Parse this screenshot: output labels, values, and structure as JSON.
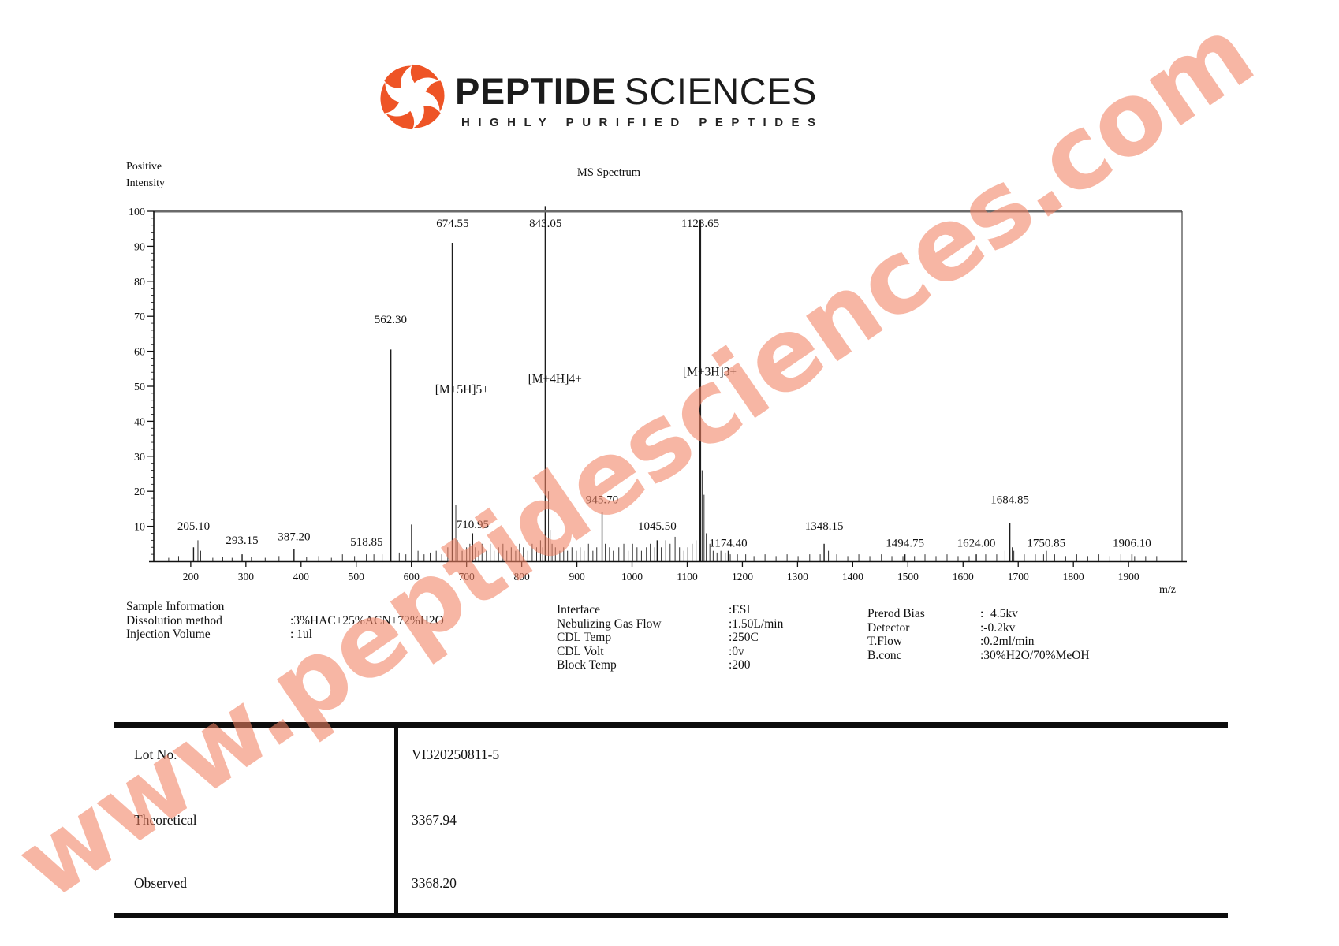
{
  "logo": {
    "brand_bold": "PEPTIDE",
    "brand_rest": "SCIENCES",
    "tagline": "HIGHLY PURIFIED PEPTIDES",
    "icon_color": "#ee5426",
    "text_color": "#1b1b1b"
  },
  "watermark": {
    "text": "www.peptidesciences.com",
    "color": "#f28263"
  },
  "chart_data": {
    "type": "bar",
    "title": "MS Spectrum",
    "ylabel_lines": [
      "Positive",
      "Intensity"
    ],
    "xlabel": "m/z",
    "xlim": [
      133,
      1997
    ],
    "ylim": [
      0,
      100
    ],
    "grid": false,
    "x_ticks": [
      200,
      300,
      400,
      500,
      600,
      700,
      800,
      900,
      1000,
      1100,
      1200,
      1300,
      1400,
      1500,
      1600,
      1700,
      1800,
      1900
    ],
    "y_ticks": [
      10,
      20,
      30,
      40,
      50,
      60,
      70,
      80,
      90,
      100
    ],
    "peaks": [
      {
        "mz": 205.1,
        "intensity": 4,
        "label": "205.10",
        "label_i": 9
      },
      {
        "mz": 293.15,
        "intensity": 2,
        "label": "293.15",
        "label_i": 5
      },
      {
        "mz": 387.2,
        "intensity": 3.5,
        "label": "387.20",
        "label_i": 6
      },
      {
        "mz": 518.85,
        "intensity": 2,
        "label": "518.85",
        "label_i": 4.5
      },
      {
        "mz": 562.3,
        "intensity": 60.5,
        "label": "562.30",
        "label_i": 68
      },
      {
        "mz": 674.55,
        "intensity": 91,
        "label": "674.55",
        "label_i": 95.5,
        "ion": "[M+5H]5+",
        "ion_i": 48
      },
      {
        "mz": 710.95,
        "intensity": 8,
        "label": "710.95",
        "label_i": 9.5
      },
      {
        "mz": 843.05,
        "intensity": 101.5,
        "label": "843.05",
        "label_i": 95.5,
        "ion": "[M+4H]4+",
        "ion_i": 51
      },
      {
        "mz": 945.7,
        "intensity": 14,
        "label": "945.70",
        "label_i": 16.5
      },
      {
        "mz": 1045.5,
        "intensity": 6,
        "label": "1045.50",
        "label_i": 9
      },
      {
        "mz": 1123.65,
        "intensity": 97.5,
        "label": "1123.65",
        "label_i": 95.5,
        "ion": "[M+3H]3+",
        "ion_i": 53
      },
      {
        "mz": 1174.4,
        "intensity": 3,
        "label": "1174.40",
        "label_i": 4.2
      },
      {
        "mz": 1348.15,
        "intensity": 5,
        "label": "1348.15",
        "label_i": 9
      },
      {
        "mz": 1494.75,
        "intensity": 2,
        "label": "1494.75",
        "label_i": 4.2
      },
      {
        "mz": 1624.0,
        "intensity": 2,
        "label": "1624.00",
        "label_i": 4.2
      },
      {
        "mz": 1684.85,
        "intensity": 11,
        "label": "1684.85",
        "label_i": 16.5
      },
      {
        "mz": 1750.85,
        "intensity": 3,
        "label": "1750.85",
        "label_i": 4.2
      },
      {
        "mz": 1906.1,
        "intensity": 2,
        "label": "1906.10",
        "label_i": 4.2
      }
    ],
    "minor_peaks": [
      [
        160,
        1
      ],
      [
        178,
        1.5
      ],
      [
        213,
        6
      ],
      [
        218,
        3
      ],
      [
        240,
        1
      ],
      [
        258,
        1.2
      ],
      [
        275,
        1
      ],
      [
        310,
        1.2
      ],
      [
        335,
        1
      ],
      [
        360,
        1.5
      ],
      [
        410,
        1.2
      ],
      [
        432,
        1.5
      ],
      [
        455,
        1
      ],
      [
        475,
        2
      ],
      [
        497,
        1.5
      ],
      [
        532,
        2
      ],
      [
        547,
        2
      ],
      [
        578,
        2.5
      ],
      [
        590,
        2
      ],
      [
        600,
        10.5
      ],
      [
        612,
        3
      ],
      [
        623,
        2
      ],
      [
        634,
        2.5
      ],
      [
        645,
        3
      ],
      [
        655,
        2
      ],
      [
        666,
        4
      ],
      [
        680.5,
        16
      ],
      [
        683.5,
        6
      ],
      [
        692,
        3
      ],
      [
        700,
        4
      ],
      [
        706,
        5
      ],
      [
        716,
        4
      ],
      [
        722,
        3
      ],
      [
        728,
        5
      ],
      [
        736,
        3
      ],
      [
        743,
        5
      ],
      [
        750,
        3
      ],
      [
        758,
        4
      ],
      [
        766,
        5
      ],
      [
        773,
        3
      ],
      [
        781,
        4
      ],
      [
        789,
        3
      ],
      [
        796,
        5
      ],
      [
        803,
        4
      ],
      [
        811,
        3
      ],
      [
        819,
        5
      ],
      [
        827,
        4
      ],
      [
        834,
        6
      ],
      [
        838,
        4
      ],
      [
        848.5,
        20
      ],
      [
        851.5,
        9
      ],
      [
        855,
        5
      ],
      [
        861,
        4
      ],
      [
        869,
        3
      ],
      [
        876,
        4
      ],
      [
        883,
        3
      ],
      [
        891,
        4
      ],
      [
        899,
        3
      ],
      [
        906,
        4
      ],
      [
        913,
        3
      ],
      [
        921,
        5
      ],
      [
        929,
        3
      ],
      [
        936,
        4
      ],
      [
        951.5,
        5
      ],
      [
        959,
        4
      ],
      [
        966,
        3
      ],
      [
        976,
        4
      ],
      [
        985,
        5
      ],
      [
        993,
        3
      ],
      [
        1001,
        5
      ],
      [
        1009,
        4
      ],
      [
        1017,
        3
      ],
      [
        1026,
        4
      ],
      [
        1033,
        5
      ],
      [
        1041,
        4
      ],
      [
        1053,
        4
      ],
      [
        1061,
        6
      ],
      [
        1069,
        5
      ],
      [
        1078,
        7
      ],
      [
        1086,
        4
      ],
      [
        1094,
        3
      ],
      [
        1101,
        4
      ],
      [
        1109,
        5
      ],
      [
        1116,
        6
      ],
      [
        1127,
        26
      ],
      [
        1130.5,
        19
      ],
      [
        1134.5,
        8
      ],
      [
        1141,
        5
      ],
      [
        1147,
        3
      ],
      [
        1154,
        2.5
      ],
      [
        1161,
        3
      ],
      [
        1169,
        2.5
      ],
      [
        1178,
        2
      ],
      [
        1191,
        2
      ],
      [
        1206,
        2
      ],
      [
        1221,
        1.5
      ],
      [
        1241,
        2
      ],
      [
        1261,
        1.5
      ],
      [
        1281,
        2
      ],
      [
        1301,
        1.5
      ],
      [
        1322,
        2
      ],
      [
        1341,
        2
      ],
      [
        1356,
        3
      ],
      [
        1371,
        2
      ],
      [
        1391,
        1.5
      ],
      [
        1411,
        2
      ],
      [
        1431,
        1.5
      ],
      [
        1452,
        2
      ],
      [
        1471,
        1.5
      ],
      [
        1491,
        1.5
      ],
      [
        1512,
        1.5
      ],
      [
        1531,
        2
      ],
      [
        1551,
        1.5
      ],
      [
        1571,
        2
      ],
      [
        1591,
        1.5
      ],
      [
        1611,
        1.5
      ],
      [
        1641,
        2
      ],
      [
        1661,
        2
      ],
      [
        1676,
        3
      ],
      [
        1689,
        4
      ],
      [
        1692,
        3
      ],
      [
        1711,
        2
      ],
      [
        1731,
        2
      ],
      [
        1746,
        2
      ],
      [
        1766,
        2
      ],
      [
        1786,
        1.5
      ],
      [
        1806,
        2
      ],
      [
        1826,
        1.5
      ],
      [
        1846,
        2
      ],
      [
        1866,
        1.5
      ],
      [
        1886,
        2
      ],
      [
        1911,
        1.5
      ],
      [
        1931,
        1.5
      ],
      [
        1951,
        1.5
      ]
    ]
  },
  "sample_info": {
    "title": "Sample Information",
    "col1": [
      {
        "label": "Dissolution method",
        "value": ":3%HAC+25%ACN+72%H2O"
      },
      {
        "label": "Injection Volume",
        "value": ": 1ul"
      }
    ],
    "col2": [
      {
        "label": "Interface",
        "value": ":ESI"
      },
      {
        "label": "Nebulizing Gas Flow",
        "value": ":1.50L/min"
      },
      {
        "label": "CDL Temp",
        "value": ":250C"
      },
      {
        "label": "CDL Volt",
        "value": ":0v"
      },
      {
        "label": "Block Temp",
        "value": ":200"
      }
    ],
    "col3": [
      {
        "label": "Prerod Bias",
        "value": ":+4.5kv"
      },
      {
        "label": "Detector",
        "value": ":-0.2kv"
      },
      {
        "label": "T.Flow",
        "value": ":0.2ml/min"
      },
      {
        "label": "B.conc",
        "value": ":30%H2O/70%MeOH"
      }
    ]
  },
  "results_table": {
    "rows": [
      {
        "label": "Lot No.",
        "value": "VI320250811-5"
      },
      {
        "label": "Theoretical",
        "value": "3367.94"
      },
      {
        "label": "Observed",
        "value": "3368.20"
      }
    ]
  }
}
